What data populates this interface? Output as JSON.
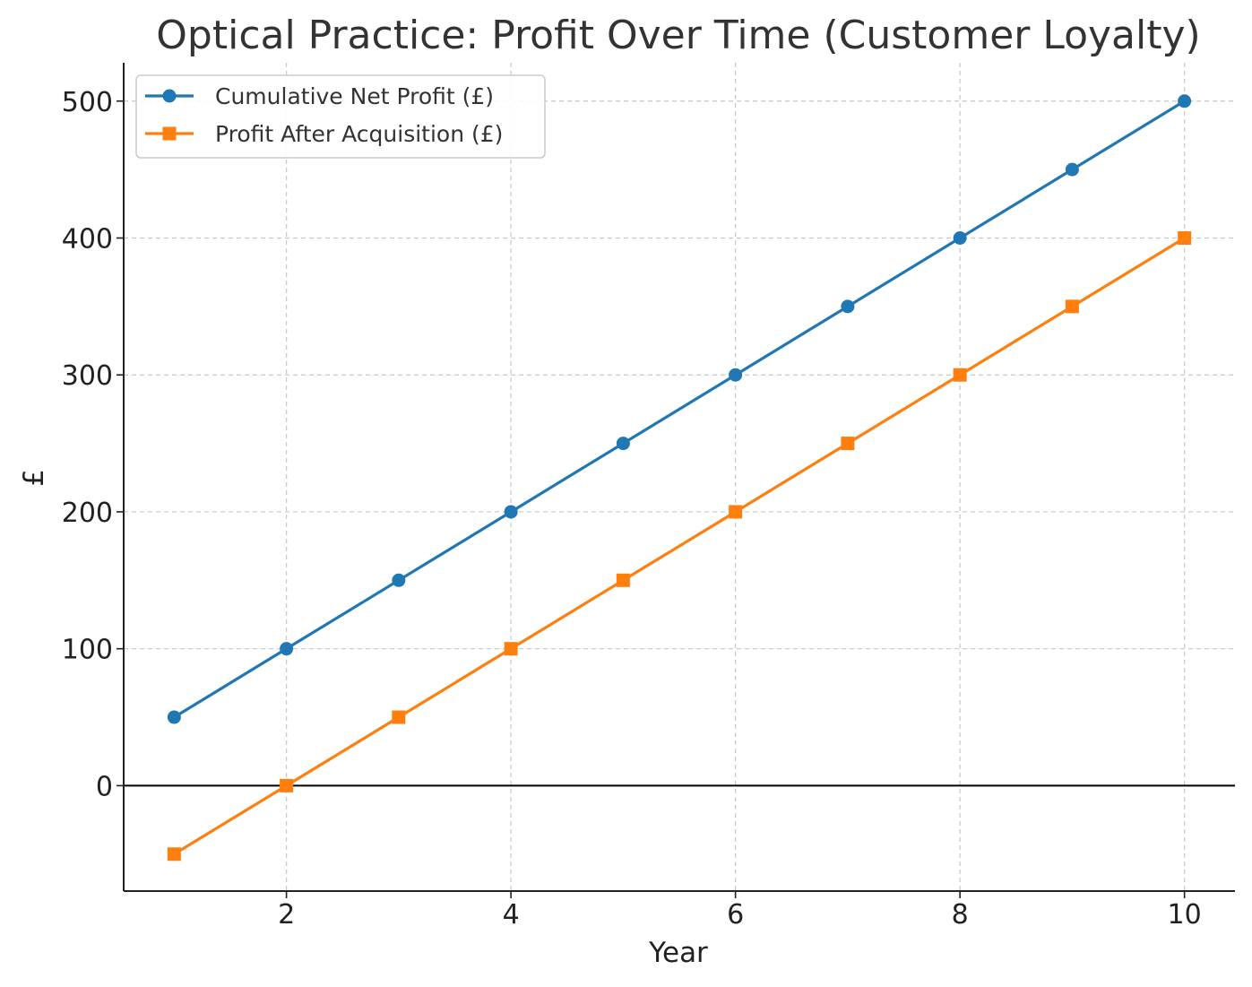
{
  "chart_data": {
    "type": "line",
    "title": "Optical Practice: Profit Over Time (Customer Loyalty)",
    "xlabel": "Year",
    "ylabel": "£",
    "x": [
      1,
      2,
      3,
      4,
      5,
      6,
      7,
      8,
      9,
      10
    ],
    "xlim": [
      0.55,
      10.45
    ],
    "ylim": [
      -77,
      528
    ],
    "xticks": [
      2,
      4,
      6,
      8,
      10
    ],
    "yticks": [
      0,
      100,
      200,
      300,
      400,
      500
    ],
    "grid": true,
    "zero_line": true,
    "legend_position": "top-left",
    "series": [
      {
        "name": "Cumulative Net Profit (£)",
        "color": "#1f77b4",
        "marker": "circle",
        "values": [
          50,
          100,
          150,
          200,
          250,
          300,
          350,
          400,
          450,
          500
        ]
      },
      {
        "name": "Profit After Acquisition (£)",
        "color": "#ff7f0e",
        "marker": "square",
        "values": [
          -50,
          0,
          50,
          100,
          150,
          200,
          250,
          300,
          350,
          400
        ]
      }
    ]
  }
}
